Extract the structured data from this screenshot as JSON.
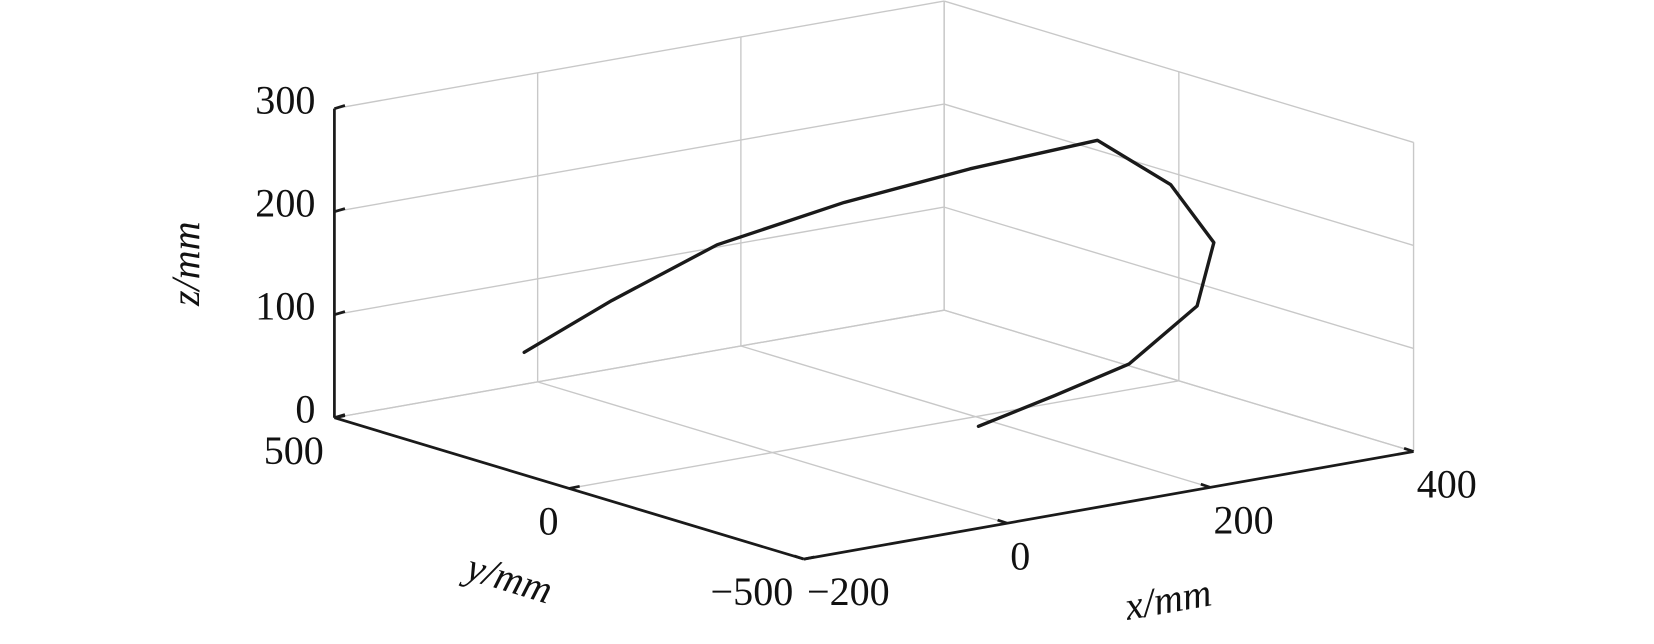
{
  "chart_data": {
    "type": "line3d",
    "xlabel": "x/mm",
    "ylabel": "y/mm",
    "zlabel": "z/mm",
    "xlim": [
      -200,
      400
    ],
    "ylim": [
      -500,
      500
    ],
    "zlim": [
      0,
      300
    ],
    "xticks": [
      {
        "value": -200,
        "label": "−200"
      },
      0,
      200,
      400
    ],
    "yticks": [
      {
        "value": -500,
        "label": "−500"
      },
      0,
      500
    ],
    "zticks": [
      0,
      100,
      200,
      300
    ],
    "grid": true,
    "series": [
      {
        "color": "#1a1a1a",
        "x": [
          -198,
          -105,
          1,
          114,
          219,
          325,
          311,
          282,
          247,
          213,
          197,
          182
        ],
        "y": [
          100,
          115,
          120,
          94,
          53,
          11,
          -175,
          -330,
          -370,
          -299,
          -175,
          -45
        ],
        "z": [
          118,
          150,
          185,
          210,
          230,
          245,
          230,
          200,
          150,
          90,
          45,
          0
        ]
      }
    ]
  }
}
